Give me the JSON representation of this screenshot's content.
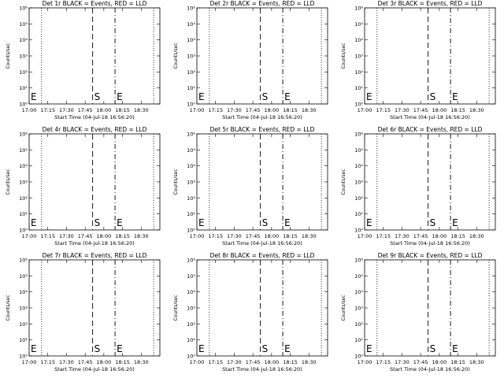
{
  "figure": {
    "background": "#ffffff",
    "foreground": "#000000"
  },
  "chart_data": [
    {
      "type": "line",
      "title": "Det 1r BLACK = Events, RED = LLD",
      "xlabel": "Start Time (04-Jul-18 16:56:20)",
      "ylabel": "Counts/sec",
      "xtick_labels": [
        "17:00",
        "17:15",
        "17:30",
        "17:45",
        "18:00",
        "18:15",
        "18:30"
      ],
      "ytick_labels": [
        "10⁰",
        "10¹",
        "10²",
        "10³",
        "10⁴",
        "10⁵",
        "10⁶"
      ],
      "ylim": [
        1,
        1000000
      ],
      "yscale": "log",
      "dotted_lines": [
        "17:10",
        "18:40"
      ],
      "markers": [
        {
          "label": "E",
          "x": "17:01",
          "style": "none"
        },
        {
          "label": "S",
          "x": "17:51",
          "style": "dashed"
        },
        {
          "label": "E",
          "x": "18:09",
          "style": "dash-dot"
        }
      ],
      "series": []
    },
    {
      "type": "line",
      "title": "Det 2r BLACK = Events, RED = LLD",
      "xlabel": "Start Time (04-Jul-18 16:56:20)",
      "ylabel": "Counts/sec",
      "xtick_labels": [
        "17:00",
        "17:15",
        "17:30",
        "17:45",
        "18:00",
        "18:15",
        "18:30"
      ],
      "ytick_labels": [
        "10⁰",
        "10¹",
        "10²",
        "10³",
        "10⁴",
        "10⁵",
        "10⁶"
      ],
      "ylim": [
        1,
        1000000
      ],
      "yscale": "log",
      "dotted_lines": [
        "17:10",
        "18:40"
      ],
      "markers": [
        {
          "label": "E",
          "x": "17:01",
          "style": "none"
        },
        {
          "label": "S",
          "x": "17:51",
          "style": "dashed"
        },
        {
          "label": "E",
          "x": "18:09",
          "style": "dash-dot"
        }
      ],
      "series": []
    },
    {
      "type": "line",
      "title": "Det 3r BLACK = Events, RED = LLD",
      "xlabel": "Start Time (04-Jul-18 16:56:20)",
      "ylabel": "Counts/sec",
      "xtick_labels": [
        "17:00",
        "17:15",
        "17:30",
        "17:45",
        "18:00",
        "18:15",
        "18:30"
      ],
      "ytick_labels": [
        "10⁰",
        "10¹",
        "10²",
        "10³",
        "10⁴",
        "10⁵",
        "10⁶"
      ],
      "ylim": [
        1,
        1000000
      ],
      "yscale": "log",
      "dotted_lines": [
        "17:10",
        "18:40"
      ],
      "markers": [
        {
          "label": "E",
          "x": "17:01",
          "style": "none"
        },
        {
          "label": "S",
          "x": "17:51",
          "style": "dashed"
        },
        {
          "label": "E",
          "x": "18:09",
          "style": "dash-dot"
        }
      ],
      "series": []
    },
    {
      "type": "line",
      "title": "Det 4r BLACK = Events, RED = LLD",
      "xlabel": "Start Time (04-Jul-18 16:56:20)",
      "ylabel": "Counts/sec",
      "xtick_labels": [
        "17:00",
        "17:15",
        "17:30",
        "17:45",
        "18:00",
        "18:15",
        "18:30"
      ],
      "ytick_labels": [
        "10⁰",
        "10¹",
        "10²",
        "10³",
        "10⁴",
        "10⁵",
        "10⁶"
      ],
      "ylim": [
        1,
        1000000
      ],
      "yscale": "log",
      "dotted_lines": [
        "17:10",
        "18:40"
      ],
      "markers": [
        {
          "label": "E",
          "x": "17:01",
          "style": "none"
        },
        {
          "label": "S",
          "x": "17:51",
          "style": "dashed"
        },
        {
          "label": "E",
          "x": "18:09",
          "style": "dash-dot"
        }
      ],
      "series": []
    },
    {
      "type": "line",
      "title": "Det 5r BLACK = Events, RED = LLD",
      "xlabel": "Start Time (04-Jul-18 16:56:20)",
      "ylabel": "Counts/sec",
      "xtick_labels": [
        "17:00",
        "17:15",
        "17:30",
        "17:45",
        "18:00",
        "18:15",
        "18:30"
      ],
      "ytick_labels": [
        "10⁰",
        "10¹",
        "10²",
        "10³",
        "10⁴",
        "10⁵",
        "10⁶"
      ],
      "ylim": [
        1,
        1000000
      ],
      "yscale": "log",
      "dotted_lines": [
        "17:10",
        "18:40"
      ],
      "markers": [
        {
          "label": "E",
          "x": "17:01",
          "style": "none"
        },
        {
          "label": "S",
          "x": "17:51",
          "style": "dashed"
        },
        {
          "label": "E",
          "x": "18:09",
          "style": "dash-dot"
        }
      ],
      "series": []
    },
    {
      "type": "line",
      "title": "Det 6r BLACK = Events, RED = LLD",
      "xlabel": "Start Time (04-Jul-18 16:56:20)",
      "ylabel": "Counts/sec",
      "xtick_labels": [
        "17:00",
        "17:15",
        "17:30",
        "17:45",
        "18:00",
        "18:15",
        "18:30"
      ],
      "ytick_labels": [
        "10⁰",
        "10¹",
        "10²",
        "10³",
        "10⁴",
        "10⁵",
        "10⁶"
      ],
      "ylim": [
        1,
        1000000
      ],
      "yscale": "log",
      "dotted_lines": [
        "17:10",
        "18:40"
      ],
      "markers": [
        {
          "label": "E",
          "x": "17:01",
          "style": "none"
        },
        {
          "label": "S",
          "x": "17:51",
          "style": "dashed"
        },
        {
          "label": "E",
          "x": "18:09",
          "style": "dash-dot"
        }
      ],
      "series": []
    },
    {
      "type": "line",
      "title": "Det 7r BLACK = Events, RED = LLD",
      "xlabel": "Start Time (04-Jul-18 16:56:20)",
      "ylabel": "Counts/sec",
      "xtick_labels": [
        "17:00",
        "17:15",
        "17:30",
        "17:45",
        "18:00",
        "18:15",
        "18:30"
      ],
      "ytick_labels": [
        "10⁰",
        "10¹",
        "10²",
        "10³",
        "10⁴",
        "10⁵",
        "10⁶"
      ],
      "ylim": [
        1,
        1000000
      ],
      "yscale": "log",
      "dotted_lines": [
        "17:10",
        "18:40"
      ],
      "markers": [
        {
          "label": "E",
          "x": "17:01",
          "style": "none"
        },
        {
          "label": "S",
          "x": "17:51",
          "style": "dashed"
        },
        {
          "label": "E",
          "x": "18:09",
          "style": "dash-dot"
        }
      ],
      "series": []
    },
    {
      "type": "line",
      "title": "Det 8r BLACK = Events, RED = LLD",
      "xlabel": "Start Time (04-Jul-18 16:56:20)",
      "ylabel": "Counts/sec",
      "xtick_labels": [
        "17:00",
        "17:15",
        "17:30",
        "17:45",
        "18:00",
        "18:15",
        "18:30"
      ],
      "ytick_labels": [
        "10⁰",
        "10¹",
        "10²",
        "10³",
        "10⁴",
        "10⁵",
        "10⁶"
      ],
      "ylim": [
        1,
        1000000
      ],
      "yscale": "log",
      "dotted_lines": [
        "17:10",
        "18:40"
      ],
      "markers": [
        {
          "label": "E",
          "x": "17:01",
          "style": "none"
        },
        {
          "label": "S",
          "x": "17:51",
          "style": "dashed"
        },
        {
          "label": "E",
          "x": "18:09",
          "style": "dash-dot"
        }
      ],
      "series": []
    },
    {
      "type": "line",
      "title": "Det 9r BLACK = Events, RED = LLD",
      "xlabel": "Start Time (04-Jul-18 16:56:20)",
      "ylabel": "Counts/sec",
      "xtick_labels": [
        "17:00",
        "17:15",
        "17:30",
        "17:45",
        "18:00",
        "18:15",
        "18:30"
      ],
      "ytick_labels": [
        "10⁰",
        "10¹",
        "10²",
        "10³",
        "10⁴",
        "10⁵",
        "10⁶"
      ],
      "ylim": [
        1,
        1000000
      ],
      "yscale": "log",
      "dotted_lines": [
        "17:10",
        "18:40"
      ],
      "markers": [
        {
          "label": "E",
          "x": "17:01",
          "style": "none"
        },
        {
          "label": "S",
          "x": "17:51",
          "style": "dashed"
        },
        {
          "label": "E",
          "x": "18:09",
          "style": "dash-dot"
        }
      ],
      "series": []
    }
  ]
}
